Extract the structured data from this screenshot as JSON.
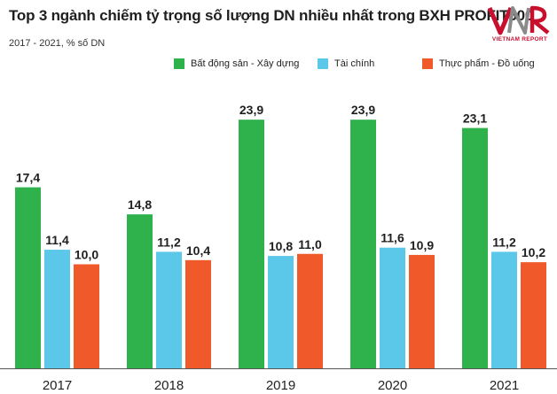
{
  "header": {
    "title": "Top 3 ngành chiếm tỷ trọng số lượng DN nhiều nhất trong BXH PROFIT500",
    "subtitle": "2017 - 2021, % số DN"
  },
  "logo": {
    "mark": "VNR",
    "text": "VIETNAM REPORT"
  },
  "colors": {
    "title": "#1f1f1f",
    "axis": "#555555",
    "label": "#1f1f1f",
    "brand": "#c8102e"
  },
  "chart_data": {
    "type": "bar",
    "categories": [
      "2017",
      "2018",
      "2019",
      "2020",
      "2021"
    ],
    "series": [
      {
        "name": "Bất động sản - Xây dựng",
        "color": "#2fb14b",
        "values": [
          17.4,
          14.8,
          23.9,
          23.9,
          23.1
        ]
      },
      {
        "name": "Tài chính",
        "color": "#5bc8ea",
        "values": [
          11.4,
          11.2,
          10.8,
          11.6,
          11.2
        ]
      },
      {
        "name": "Thực phẩm - Đồ uống",
        "color": "#f0592a",
        "values": [
          10.0,
          10.4,
          11.0,
          10.9,
          10.2
        ]
      }
    ],
    "data_labels": [
      [
        "17,4",
        "14,8",
        "23,9",
        "23,9",
        "23,1"
      ],
      [
        "11,4",
        "11,2",
        "10,8",
        "11,6",
        "11,2"
      ],
      [
        "10,0",
        "10,4",
        "11,0",
        "10,9",
        "10,2"
      ]
    ],
    "ylim": [
      0,
      26
    ],
    "grid": false,
    "legend_position": "top"
  }
}
